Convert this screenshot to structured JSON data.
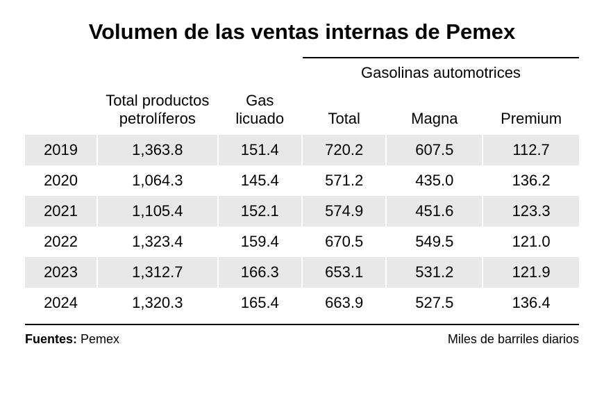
{
  "title": "Volumen de las ventas internas de Pemex",
  "table": {
    "type": "table",
    "group_header": "Gasolinas automotrices",
    "columns": [
      "",
      "Total productos petrolíferos",
      "Gas licuado",
      "Total",
      "Magna",
      "Premium"
    ],
    "column_widths_pct": [
      12,
      20,
      14,
      14,
      16,
      16
    ],
    "rows": [
      [
        "2019",
        "1,363.8",
        "151.4",
        "720.2",
        "607.5",
        "112.7"
      ],
      [
        "2020",
        "1,064.3",
        "145.4",
        "571.2",
        "435.0",
        "136.2"
      ],
      [
        "2021",
        "1,105.4",
        "152.1",
        "574.9",
        "451.6",
        "123.3"
      ],
      [
        "2022",
        "1,323.4",
        "159.4",
        "670.5",
        "549.5",
        "121.0"
      ],
      [
        "2023",
        "1,312.7",
        "166.3",
        "653.1",
        "531.2",
        "121.9"
      ],
      [
        "2024",
        "1,320.3",
        "165.4",
        "663.9",
        "527.5",
        "136.4"
      ]
    ],
    "row_stripe_even_color": "#e8e8e8",
    "row_stripe_odd_color": "#ffffff",
    "column_separator_color": "#ffffff",
    "border_color": "#000000",
    "text_color": "#000000",
    "header_font_size_pt": 17,
    "cell_font_size_pt": 17,
    "title_font_size_pt": 23
  },
  "footer": {
    "source_label": "Fuentes:",
    "source_value": "Pemex",
    "units": "Miles de barriles diarios",
    "font_size_pt": 14
  },
  "background_color": "#ffffff"
}
